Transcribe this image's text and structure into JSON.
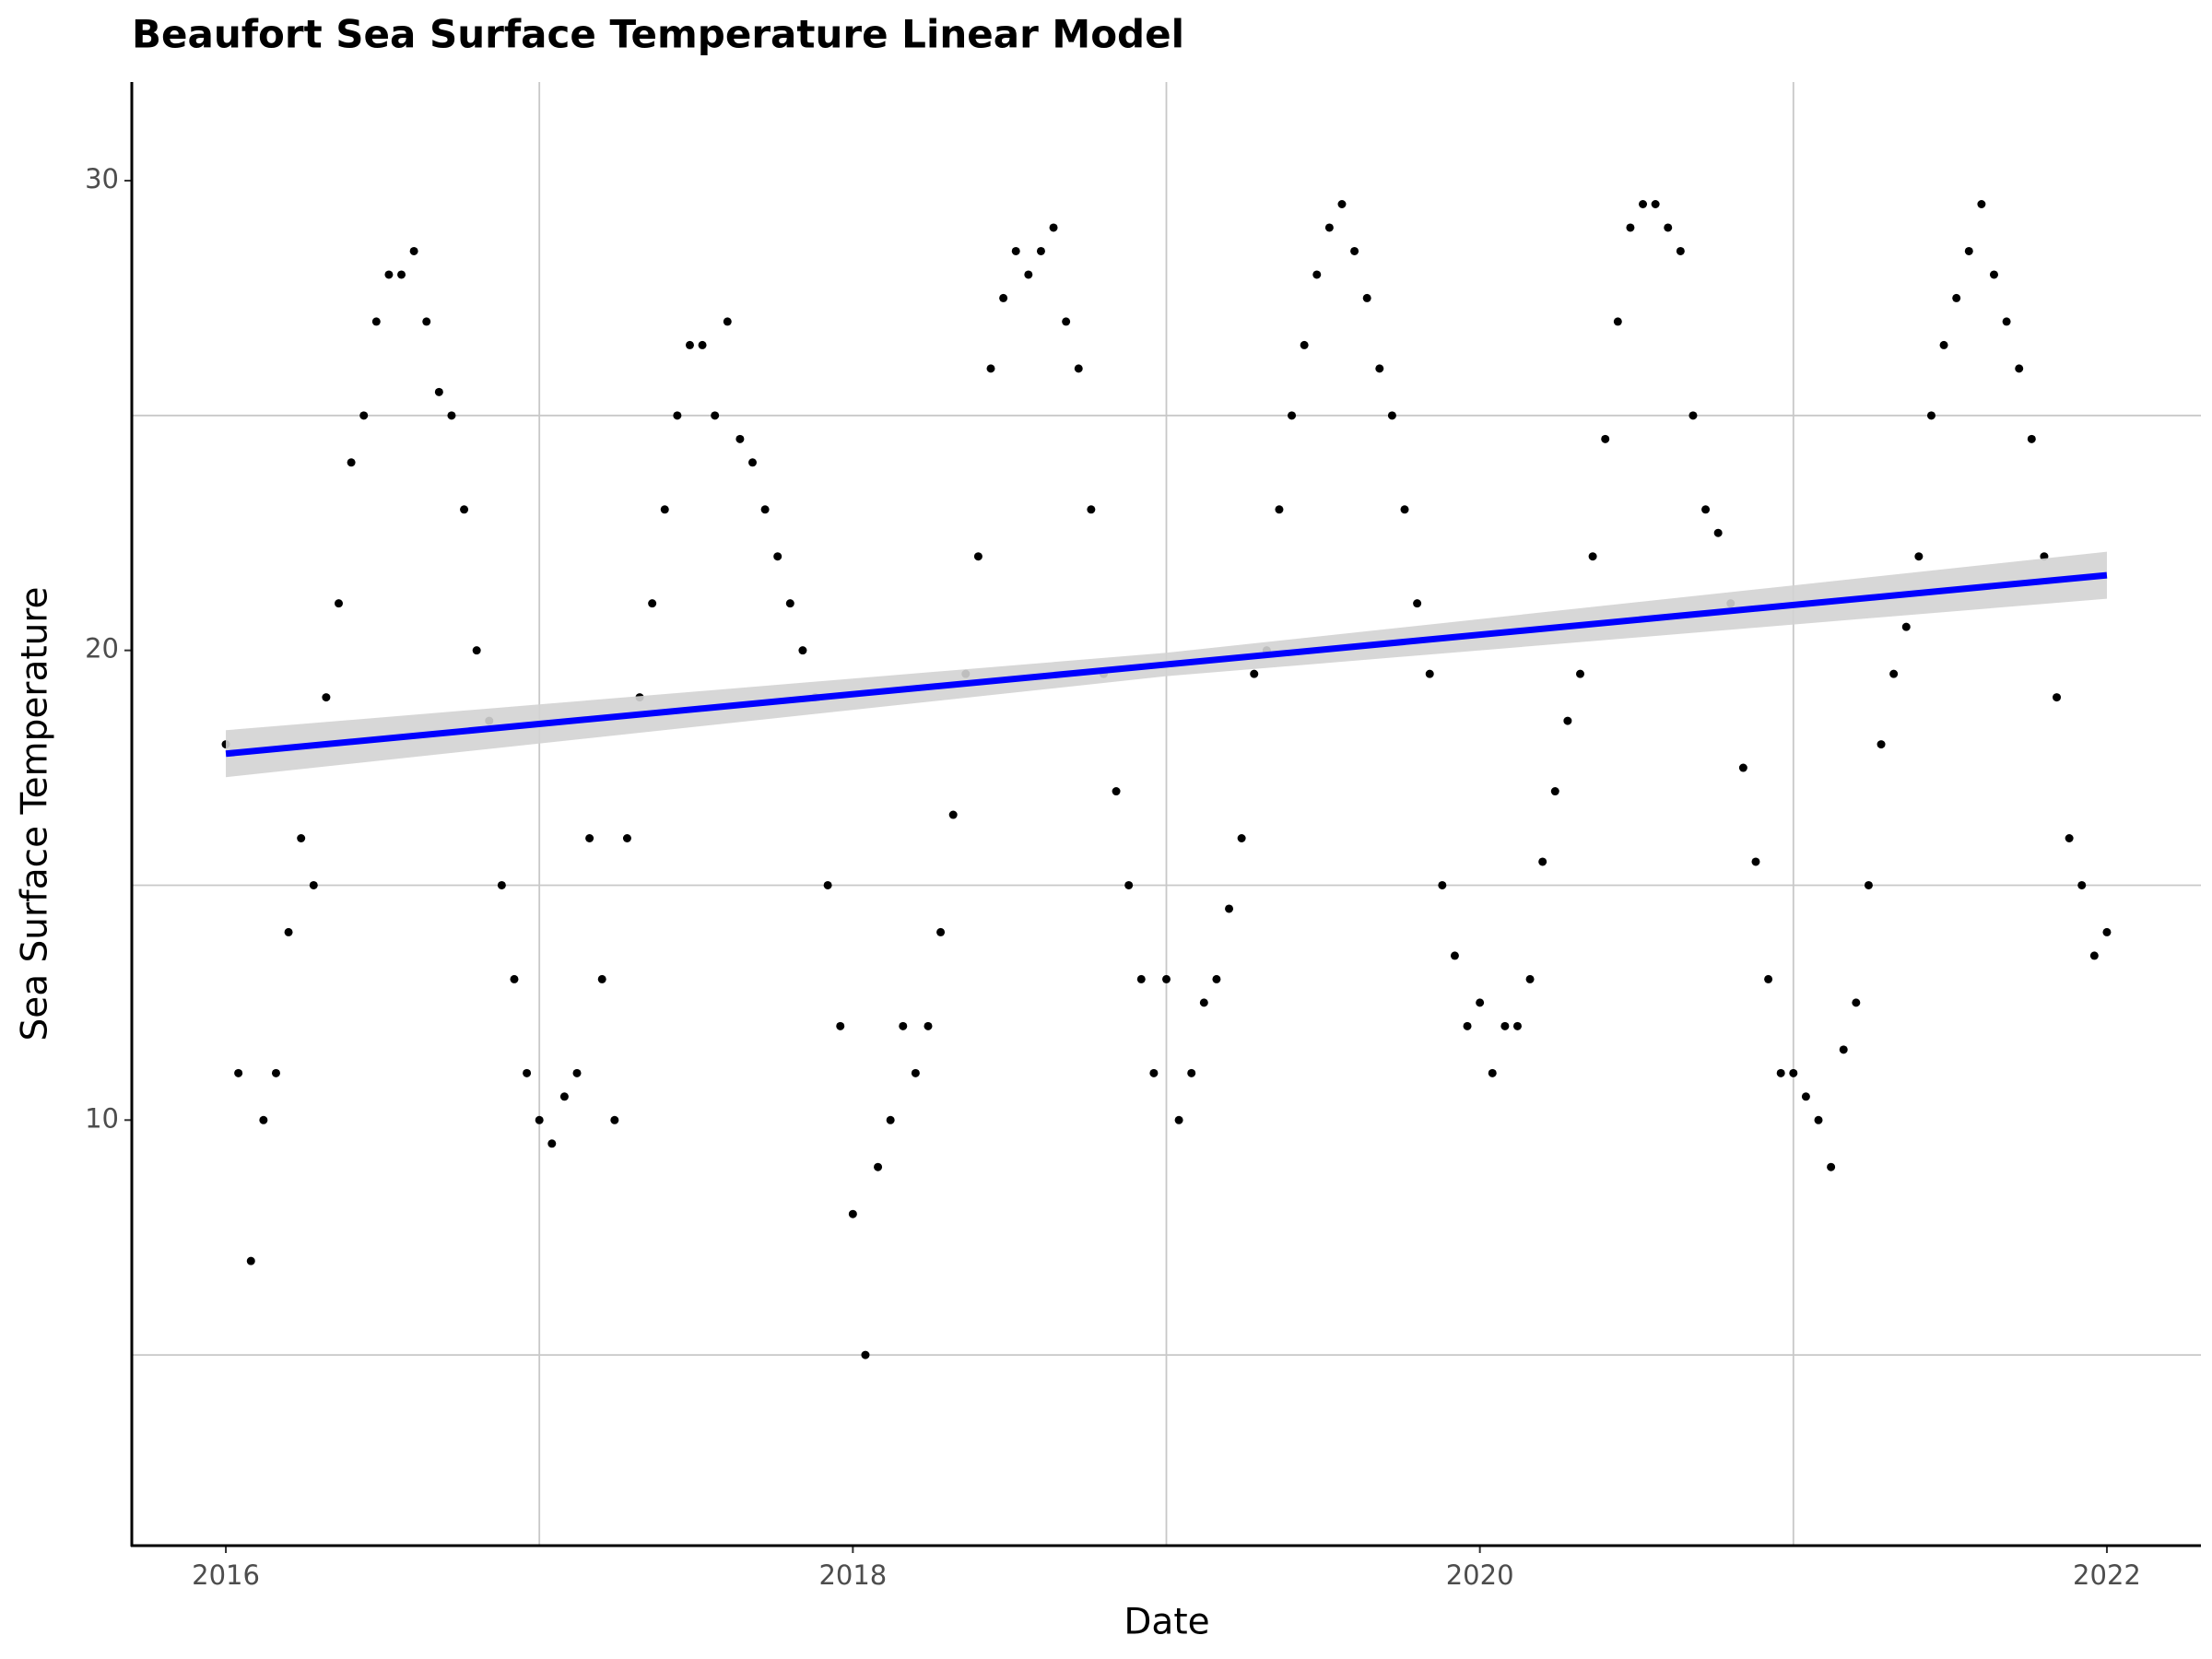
{
  "chart_data": {
    "type": "scatter",
    "title": "Beaufort Sea Surface Temperature Linear Model",
    "x_label": "Date",
    "y_label": "Sea Surface Temperature",
    "xlim": [
      2015.7,
      2022.3
    ],
    "ylim": [
      0.94,
      32.1
    ],
    "xticks": [
      2016,
      2018,
      2020,
      2022
    ],
    "yticks": [
      10,
      20,
      30
    ],
    "minor_xgrid": [
      2017,
      2019,
      2021
    ],
    "minor_ygrid": [
      5,
      15,
      25
    ],
    "color": "#000000",
    "x": [
      2016.0,
      2016.04,
      2016.08,
      2016.12,
      2016.16,
      2016.2,
      2016.24,
      2016.28,
      2016.32,
      2016.36,
      2016.4,
      2016.44,
      2016.48,
      2016.52,
      2016.56,
      2016.6,
      2016.64,
      2016.68,
      2016.72,
      2016.76,
      2016.8,
      2016.84,
      2016.88,
      2016.92,
      2016.96,
      2017.0,
      2017.04,
      2017.08,
      2017.12,
      2017.16,
      2017.2,
      2017.24,
      2017.28,
      2017.32,
      2017.36,
      2017.4,
      2017.44,
      2017.48,
      2017.52,
      2017.56,
      2017.6,
      2017.64,
      2017.68,
      2017.72,
      2017.76,
      2017.8,
      2017.84,
      2017.88,
      2017.92,
      2017.96,
      2018.0,
      2018.04,
      2018.08,
      2018.12,
      2018.16,
      2018.2,
      2018.24,
      2018.28,
      2018.32,
      2018.36,
      2018.4,
      2018.44,
      2018.48,
      2018.52,
      2018.56,
      2018.6,
      2018.64,
      2018.68,
      2018.72,
      2018.76,
      2018.8,
      2018.84,
      2018.88,
      2018.92,
      2018.96,
      2019.0,
      2019.04,
      2019.08,
      2019.12,
      2019.16,
      2019.2,
      2019.24,
      2019.28,
      2019.32,
      2019.36,
      2019.4,
      2019.44,
      2019.48,
      2019.52,
      2019.56,
      2019.6,
      2019.64,
      2019.68,
      2019.72,
      2019.76,
      2019.8,
      2019.84,
      2019.88,
      2019.92,
      2019.96,
      2020.0,
      2020.04,
      2020.08,
      2020.12,
      2020.16,
      2020.2,
      2020.24,
      2020.28,
      2020.32,
      2020.36,
      2020.4,
      2020.44,
      2020.48,
      2020.52,
      2020.56,
      2020.6,
      2020.64,
      2020.68,
      2020.72,
      2020.76,
      2020.8,
      2020.84,
      2020.88,
      2020.92,
      2020.96,
      2021.0,
      2021.04,
      2021.08,
      2021.12,
      2021.16,
      2021.2,
      2021.24,
      2021.28,
      2021.32,
      2021.36,
      2021.4,
      2021.44,
      2021.48,
      2021.52,
      2021.56,
      2021.6,
      2021.64,
      2021.68,
      2021.72,
      2021.76,
      2021.8,
      2021.84,
      2021.88,
      2021.92,
      2021.96,
      2022.0
    ],
    "values": [
      18,
      11,
      7,
      10,
      11,
      14,
      16,
      15,
      19,
      21,
      24,
      25,
      27,
      28,
      28,
      28.5,
      27,
      25.5,
      25,
      23,
      20,
      18.5,
      15,
      13,
      11,
      10,
      9.5,
      10.5,
      11,
      16,
      13,
      10,
      16,
      19,
      21,
      23,
      25,
      26.5,
      26.5,
      25,
      27,
      24.5,
      24,
      23,
      22,
      21,
      20,
      19,
      15,
      12,
      8,
      5,
      9,
      10,
      12,
      11,
      12,
      14,
      16.5,
      19.5,
      22,
      26,
      27.5,
      28.5,
      28,
      28.5,
      29,
      27,
      26,
      23,
      19.5,
      17,
      15,
      13,
      11,
      13,
      10,
      11,
      12.5,
      13,
      14.5,
      16,
      19.5,
      20,
      23,
      25,
      26.5,
      28,
      29,
      29.5,
      28.5,
      27.5,
      26,
      25,
      23,
      21,
      19.5,
      15,
      13.5,
      12,
      12.5,
      11,
      12,
      12,
      13,
      15.5,
      17,
      18.5,
      19.5,
      22,
      24.5,
      27,
      29,
      29.5,
      29.5,
      29,
      28.5,
      25,
      23,
      22.5,
      21,
      17.5,
      15.5,
      13,
      11,
      11,
      10.5,
      10,
      9,
      11.5,
      12.5,
      15,
      18,
      19.5,
      20.5,
      22,
      25,
      26.5,
      27.5,
      28.5,
      29.5,
      28,
      27,
      26,
      24.5,
      22,
      19,
      16,
      15,
      13.5,
      14
    ],
    "trend": {
      "color": "#0000ff",
      "band_color": "#d3d3d3",
      "x": [
        2016,
        2019,
        2022
      ],
      "values": [
        17.8,
        19.7,
        21.6
      ],
      "lower": [
        17.3,
        19.45,
        21.1
      ],
      "upper": [
        18.3,
        19.95,
        22.1
      ]
    }
  }
}
